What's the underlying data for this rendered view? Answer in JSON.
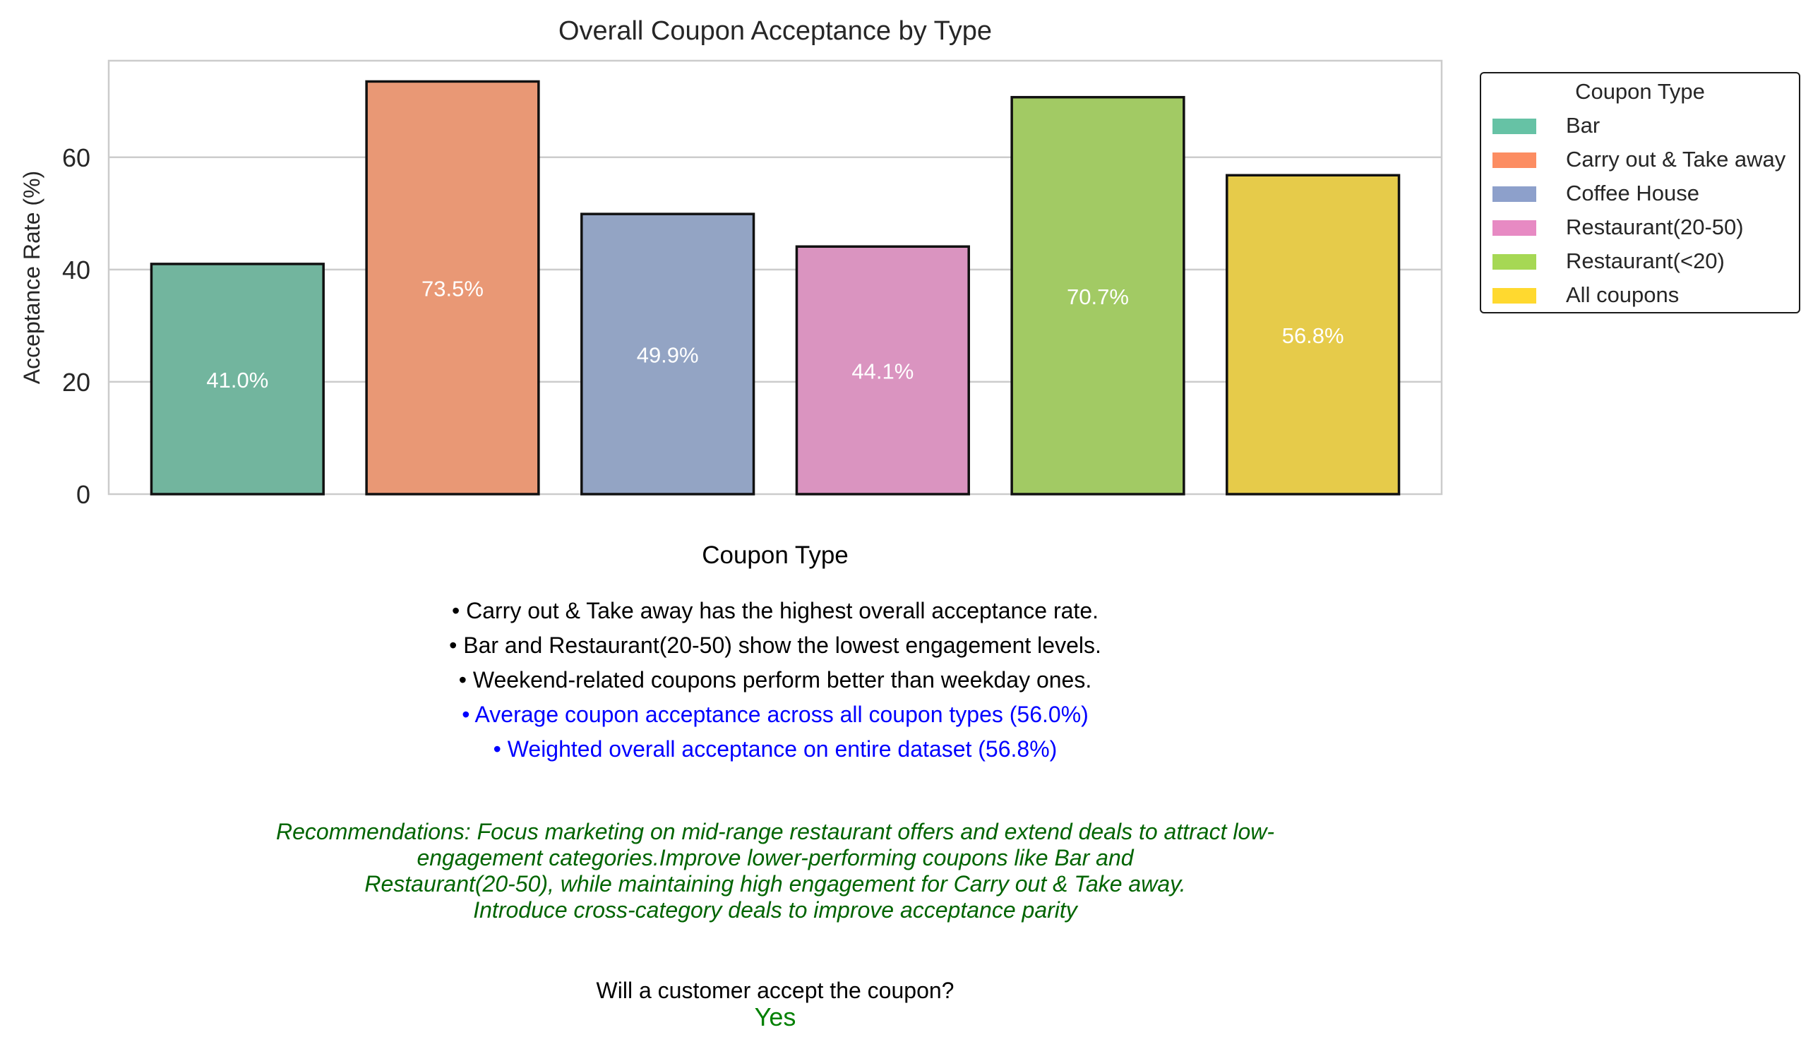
{
  "chart_data": {
    "type": "bar",
    "title": "Overall Coupon Acceptance by Type",
    "xlabel": "Coupon Type",
    "ylabel": "Acceptance Rate (%)",
    "categories": [
      "Bar",
      "Carry out & Take away",
      "Coffee House",
      "Restaurant(20-50)",
      "Restaurant(<20)",
      "All coupons"
    ],
    "values": [
      41.0,
      73.5,
      49.9,
      44.1,
      70.7,
      56.8
    ],
    "value_labels": [
      "41.0%",
      "73.5%",
      "49.9%",
      "44.1%",
      "70.7%",
      "56.8%"
    ],
    "colors": [
      "#72b59e",
      "#e99875",
      "#93a4c4",
      "#da94c0",
      "#a2ca64",
      "#e6cb4a"
    ],
    "legend_colors": [
      "#66c2a5",
      "#fc8d62",
      "#8da0cb",
      "#e78ac3",
      "#a6d854",
      "#ffd92f"
    ],
    "ylim": [
      0,
      77.2
    ],
    "yticks": [
      0,
      20,
      40,
      60
    ],
    "ytick_labels": [
      "0",
      "20",
      "40",
      "60"
    ],
    "grid": "horizontal",
    "legend": {
      "title": "Coupon Type",
      "placement": "outside-top-right"
    }
  },
  "notes": [
    "• Carry out & Take away has the highest overall acceptance rate.",
    "• Bar and Restaurant(20-50) show the lowest engagement levels.",
    "• Weekend-related coupons perform better than weekday ones.",
    "• Average coupon acceptance across all coupon types (56.0%)",
    "• Weighted overall acceptance on entire dataset (56.8%)"
  ],
  "recommendations": [
    "Recommendations: Focus marketing on mid-range restaurant offers and extend deals to attract low-",
    "engagement categories.Improve lower-performing coupons like Bar and",
    "Restaurant(20-50), while maintaining high engagement for Carry out & Take away.",
    "Introduce cross-category deals to improve acceptance parity"
  ],
  "question": "Will a customer accept the coupon?",
  "answer": "Yes"
}
